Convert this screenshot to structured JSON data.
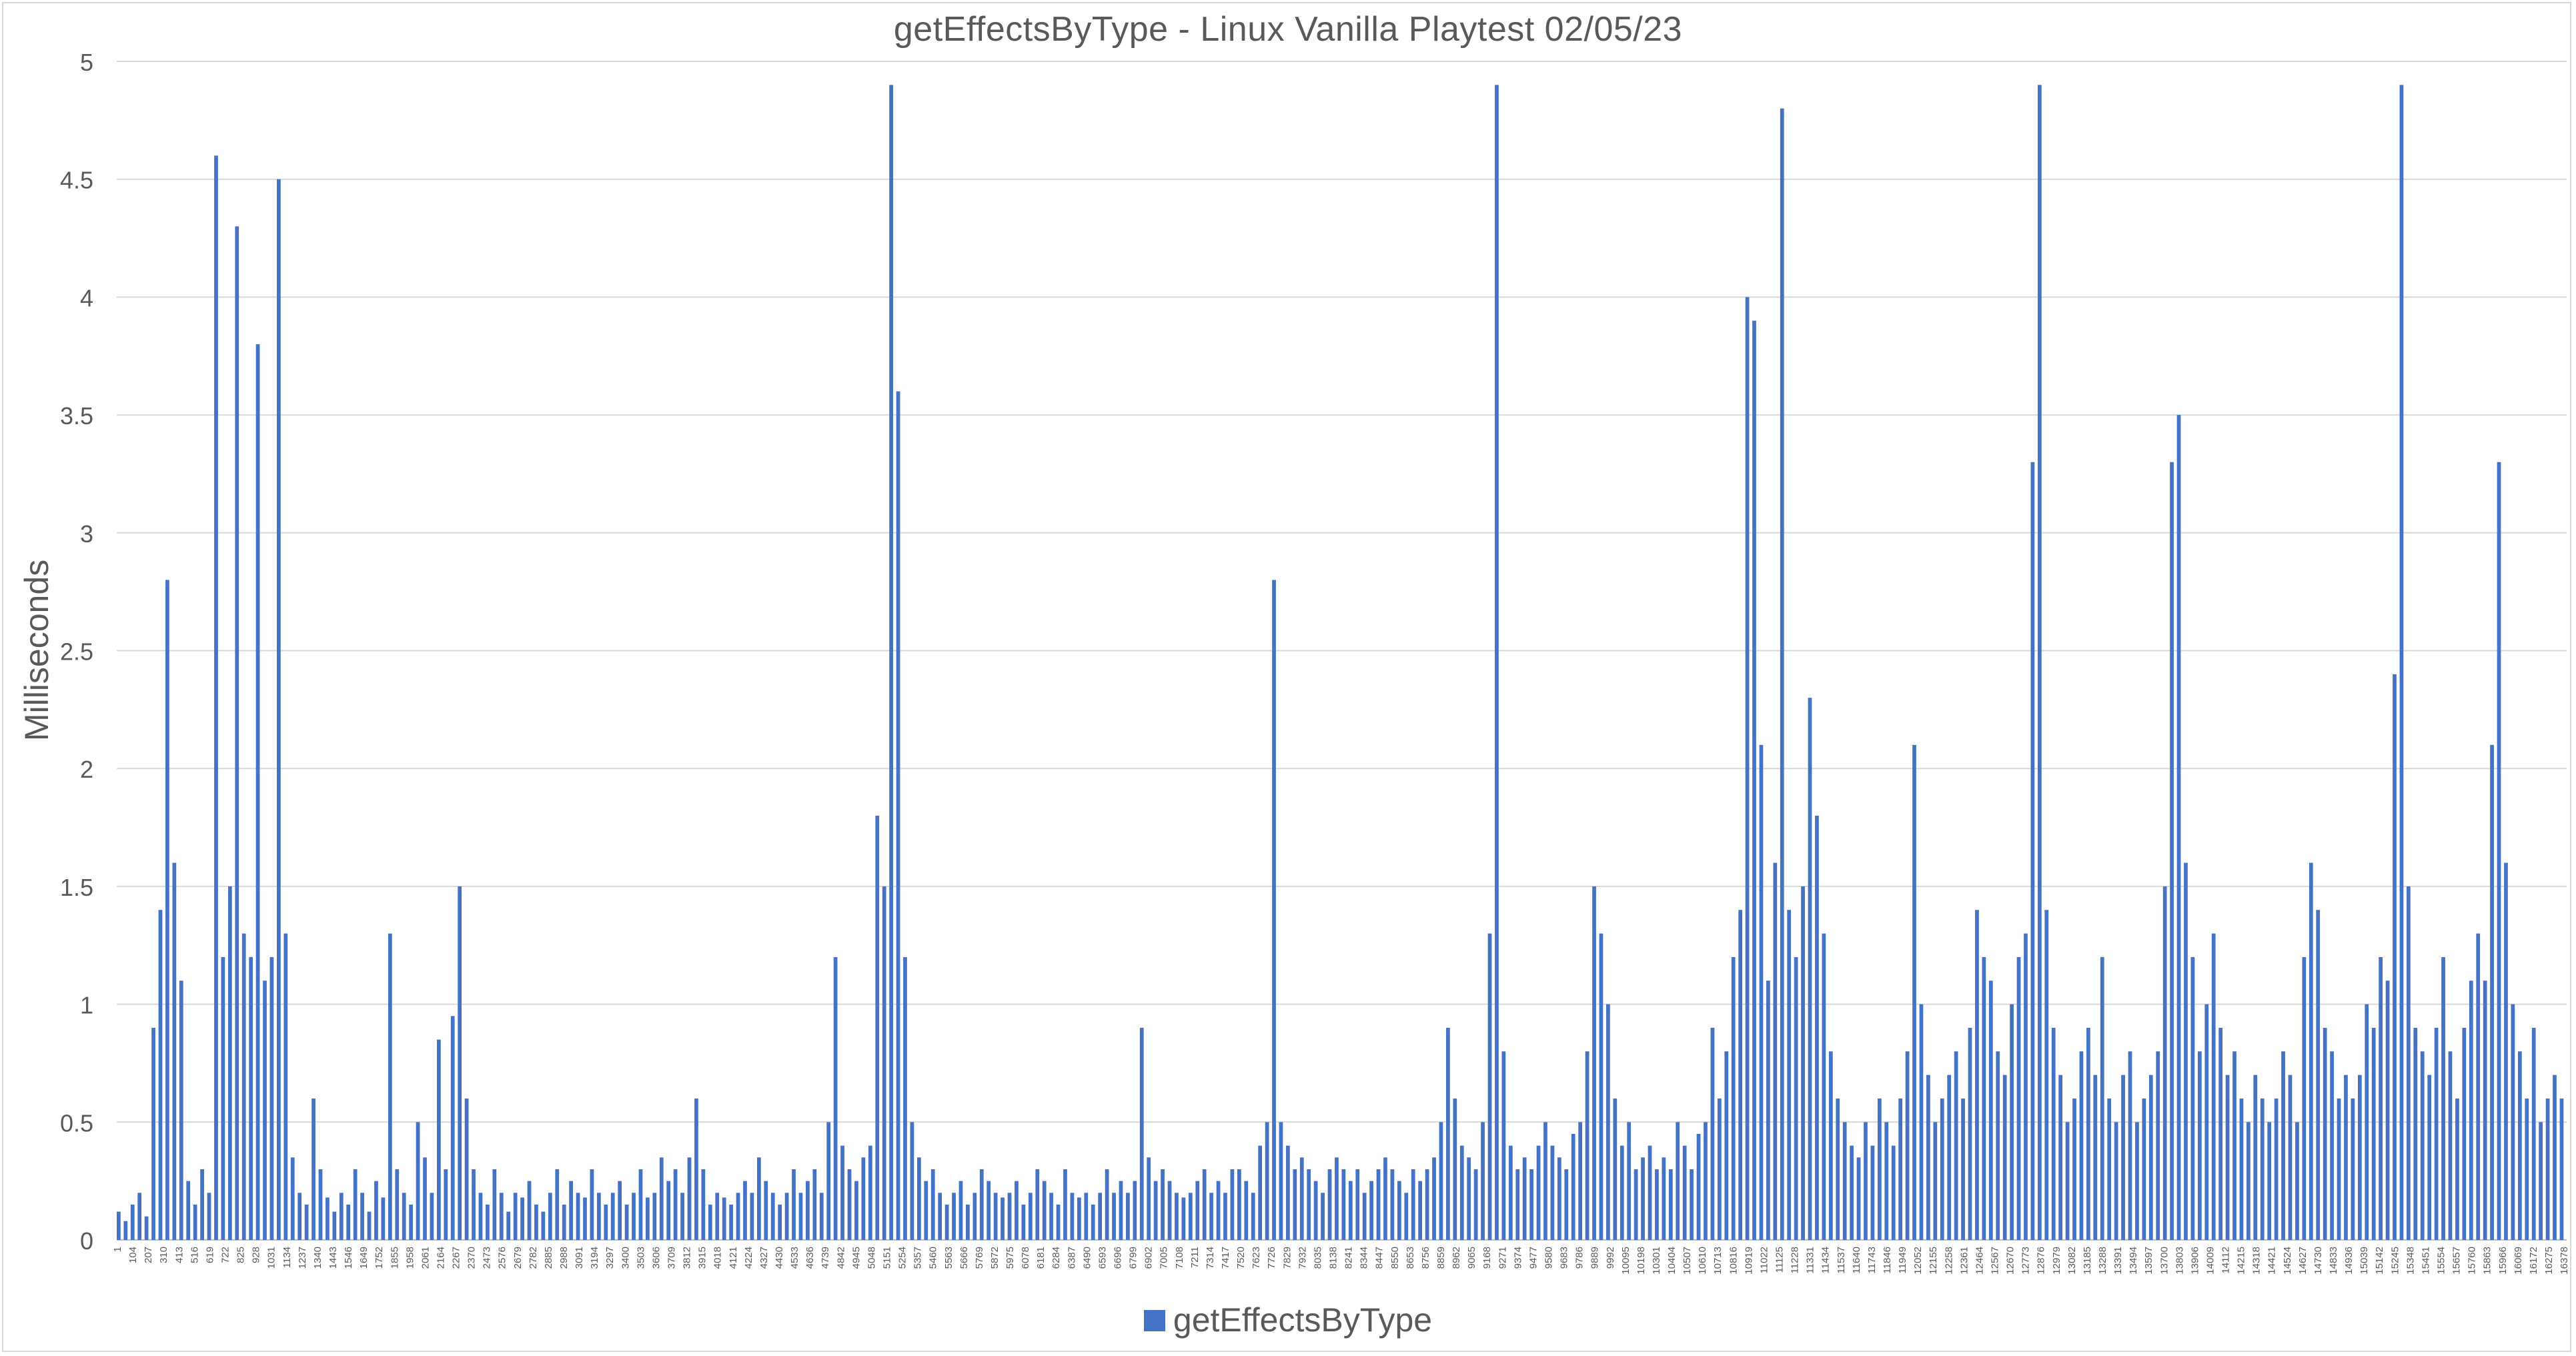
{
  "chart_data": {
    "type": "bar",
    "title": "getEffectsByType - Linux Vanilla Playtest 02/05/23",
    "xlabel": "",
    "ylabel": "Milliseconds",
    "ylim": [
      0,
      5
    ],
    "yticks": [
      "0",
      "0.5",
      "1",
      "1.5",
      "2",
      "2.5",
      "3",
      "3.5",
      "4",
      "4.5",
      "5"
    ],
    "xticks": [
      "1",
      "104",
      "207",
      "310",
      "413",
      "516",
      "619",
      "722",
      "825",
      "928",
      "1031",
      "1134",
      "1237",
      "1340",
      "1443",
      "1546",
      "1649",
      "1752",
      "1855",
      "1958",
      "2061",
      "2164",
      "2267",
      "2370",
      "2473",
      "2576",
      "2679",
      "2782",
      "2885",
      "2988",
      "3091",
      "3194",
      "3297",
      "3400",
      "3503",
      "3606",
      "3709",
      "3812",
      "3915",
      "4018",
      "4121",
      "4224",
      "4327",
      "4430",
      "4533",
      "4636",
      "4739",
      "4842",
      "4945",
      "5048",
      "5151",
      "5254",
      "5357",
      "5460",
      "5563",
      "5666",
      "5769",
      "5872",
      "5975",
      "6078",
      "6181",
      "6284",
      "6387",
      "6490",
      "6593",
      "6696",
      "6799",
      "6902",
      "7005",
      "7108",
      "7211",
      "7314",
      "7417",
      "7520",
      "7623",
      "7726",
      "7829",
      "7932",
      "8035",
      "8138",
      "8241",
      "8344",
      "8447",
      "8550",
      "8653",
      "8756",
      "8859",
      "8962",
      "9065",
      "9168",
      "9271",
      "9374",
      "9477",
      "9580",
      "9683",
      "9786",
      "9889",
      "9992",
      "10095",
      "10198",
      "10301",
      "10404",
      "10507",
      "10610",
      "10713",
      "10816",
      "10919",
      "11022",
      "11125",
      "11228",
      "11331",
      "11434",
      "11537",
      "11640",
      "11743",
      "11846",
      "11949",
      "12052",
      "12155",
      "12258",
      "12361",
      "12464",
      "12567",
      "12670",
      "12773",
      "12876",
      "12979",
      "13082",
      "13185",
      "13288",
      "13391",
      "13494",
      "13597",
      "13700",
      "13803",
      "13906",
      "14009",
      "14112",
      "14215",
      "14318",
      "14421",
      "14524",
      "14627",
      "14730",
      "14833",
      "14936",
      "15039",
      "15142",
      "15245",
      "15348",
      "15451",
      "15554",
      "15657",
      "15760",
      "15863",
      "15966",
      "16069",
      "16172",
      "16275",
      "16378"
    ],
    "x_range": [
      1,
      16400
    ],
    "series": [
      {
        "name": "getEffectsByType",
        "color": "#4472c4",
        "values": [
          0.12,
          0.08,
          0.15,
          0.2,
          0.1,
          0.9,
          1.4,
          2.8,
          1.6,
          1.1,
          0.25,
          0.15,
          0.3,
          0.2,
          4.6,
          1.2,
          1.5,
          4.3,
          1.3,
          1.2,
          3.8,
          1.1,
          1.2,
          4.5,
          1.3,
          0.35,
          0.2,
          0.15,
          0.6,
          0.3,
          0.18,
          0.12,
          0.2,
          0.15,
          0.3,
          0.2,
          0.12,
          0.25,
          0.18,
          1.3,
          0.3,
          0.2,
          0.15,
          0.5,
          0.35,
          0.2,
          0.85,
          0.3,
          0.95,
          1.5,
          0.6,
          0.3,
          0.2,
          0.15,
          0.3,
          0.2,
          0.12,
          0.2,
          0.18,
          0.25,
          0.15,
          0.12,
          0.2,
          0.3,
          0.15,
          0.25,
          0.2,
          0.18,
          0.3,
          0.2,
          0.15,
          0.2,
          0.25,
          0.15,
          0.2,
          0.3,
          0.18,
          0.2,
          0.35,
          0.25,
          0.3,
          0.2,
          0.35,
          0.6,
          0.3,
          0.15,
          0.2,
          0.18,
          0.15,
          0.2,
          0.25,
          0.2,
          0.35,
          0.25,
          0.2,
          0.15,
          0.2,
          0.3,
          0.2,
          0.25,
          0.3,
          0.2,
          0.5,
          1.2,
          0.4,
          0.3,
          0.25,
          0.35,
          0.4,
          1.8,
          1.5,
          4.9,
          3.6,
          1.2,
          0.5,
          0.35,
          0.25,
          0.3,
          0.2,
          0.15,
          0.2,
          0.25,
          0.15,
          0.2,
          0.3,
          0.25,
          0.2,
          0.18,
          0.2,
          0.25,
          0.15,
          0.2,
          0.3,
          0.25,
          0.2,
          0.15,
          0.3,
          0.2,
          0.18,
          0.2,
          0.15,
          0.2,
          0.3,
          0.2,
          0.25,
          0.2,
          0.25,
          0.9,
          0.35,
          0.25,
          0.3,
          0.25,
          0.2,
          0.18,
          0.2,
          0.25,
          0.3,
          0.2,
          0.25,
          0.2,
          0.3,
          0.3,
          0.25,
          0.2,
          0.4,
          0.5,
          2.8,
          0.5,
          0.4,
          0.3,
          0.35,
          0.3,
          0.25,
          0.2,
          0.3,
          0.35,
          0.3,
          0.25,
          0.3,
          0.2,
          0.25,
          0.3,
          0.35,
          0.3,
          0.25,
          0.2,
          0.3,
          0.25,
          0.3,
          0.35,
          0.5,
          0.9,
          0.6,
          0.4,
          0.35,
          0.3,
          0.5,
          1.3,
          4.9,
          0.8,
          0.4,
          0.3,
          0.35,
          0.3,
          0.4,
          0.5,
          0.4,
          0.35,
          0.3,
          0.45,
          0.5,
          0.8,
          1.5,
          1.3,
          1.0,
          0.6,
          0.4,
          0.5,
          0.3,
          0.35,
          0.4,
          0.3,
          0.35,
          0.3,
          0.5,
          0.4,
          0.3,
          0.45,
          0.5,
          0.9,
          0.6,
          0.8,
          1.2,
          1.4,
          4.0,
          3.9,
          2.1,
          1.1,
          1.6,
          4.8,
          1.4,
          1.2,
          1.5,
          2.3,
          1.8,
          1.3,
          0.8,
          0.6,
          0.5,
          0.4,
          0.35,
          0.5,
          0.4,
          0.6,
          0.5,
          0.4,
          0.6,
          0.8,
          2.1,
          1.0,
          0.7,
          0.5,
          0.6,
          0.7,
          0.8,
          0.6,
          0.9,
          1.4,
          1.2,
          1.1,
          0.8,
          0.7,
          1.0,
          1.2,
          1.3,
          3.3,
          4.9,
          1.4,
          0.9,
          0.7,
          0.5,
          0.6,
          0.8,
          0.9,
          0.7,
          1.2,
          0.6,
          0.5,
          0.7,
          0.8,
          0.5,
          0.6,
          0.7,
          0.8,
          1.5,
          3.3,
          3.5,
          1.6,
          1.2,
          0.8,
          1.0,
          1.3,
          0.9,
          0.7,
          0.8,
          0.6,
          0.5,
          0.7,
          0.6,
          0.5,
          0.6,
          0.8,
          0.7,
          0.5,
          1.2,
          1.6,
          1.4,
          0.9,
          0.8,
          0.6,
          0.7,
          0.6,
          0.7,
          1.0,
          0.9,
          1.2,
          1.1,
          2.4,
          4.9,
          1.5,
          0.9,
          0.8,
          0.7,
          0.9,
          1.2,
          0.8,
          0.6,
          0.9,
          1.1,
          1.3,
          1.1,
          2.1,
          3.3,
          1.6,
          1.0,
          0.8,
          0.6,
          0.9,
          0.5,
          0.6,
          0.7,
          0.6
        ]
      }
    ],
    "legend": {
      "position": "bottom",
      "entries": [
        "getEffectsByType"
      ]
    },
    "grid": true
  }
}
